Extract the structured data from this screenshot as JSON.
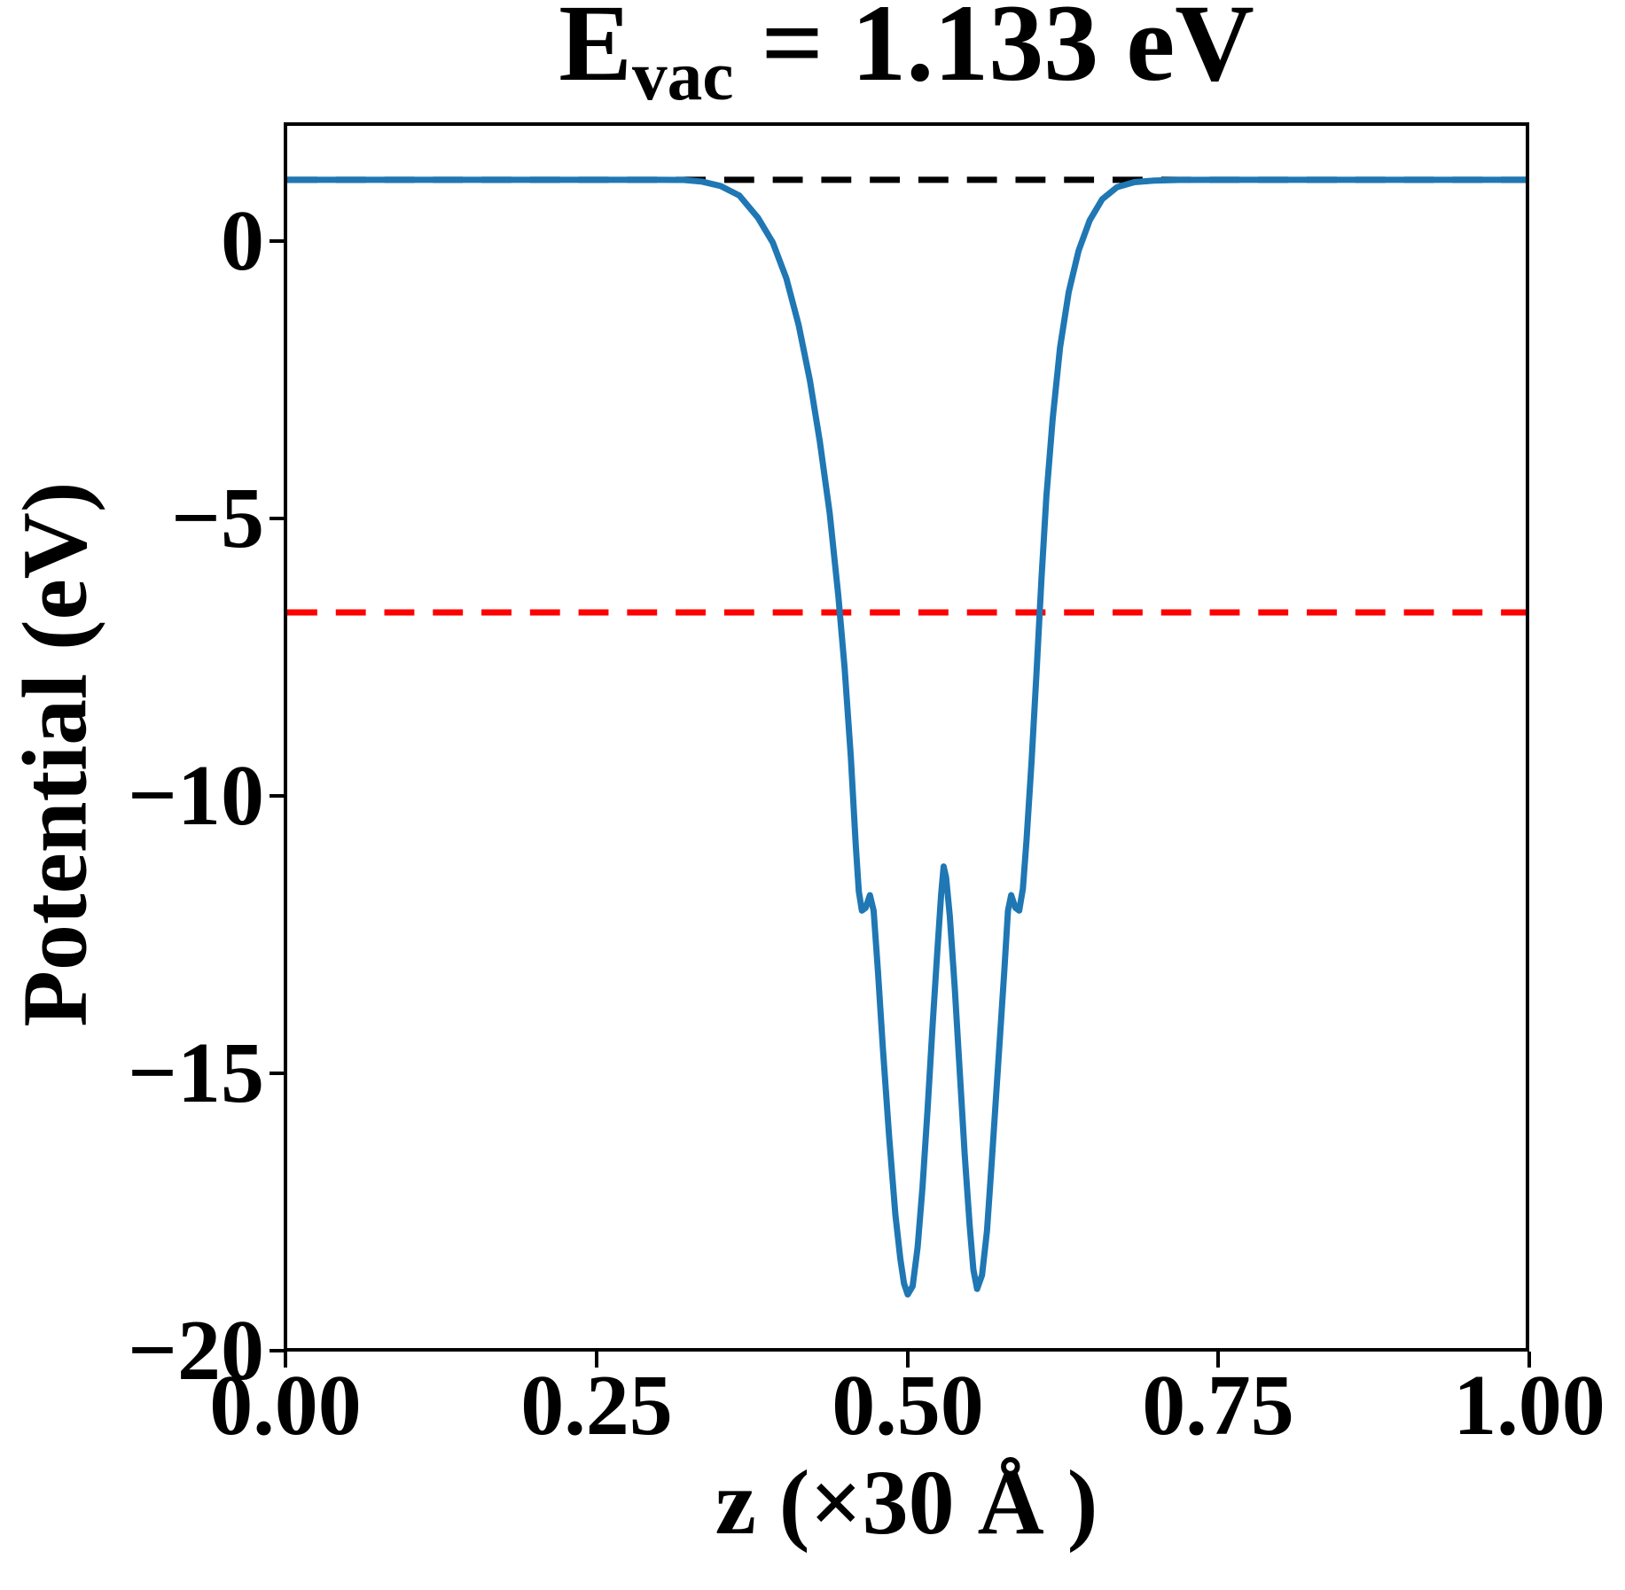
{
  "figure": {
    "title": {
      "prefix": "E",
      "subscript": "vac",
      "rest": " = 1.133 eV"
    },
    "xlabel": "z (×30 Å )",
    "ylabel": "Potential (eV)"
  },
  "colors": {
    "curve": "#1f77b4",
    "vacuum_line": "#000000",
    "reference_line": "#ff0000",
    "axes": "#000000",
    "background": "#ffffff"
  },
  "chart_data": {
    "type": "line",
    "title": "E_vac = 1.133 eV",
    "xlabel": "z (×30 Å )",
    "ylabel": "Potential (eV)",
    "xlim": [
      0,
      1
    ],
    "ylim": [
      -20.02,
      2.11
    ],
    "grid": false,
    "legend": "none",
    "xticks": {
      "values": [
        0,
        0.25,
        0.5,
        0.75,
        1
      ],
      "labels": [
        "0.00",
        "0.25",
        "0.50",
        "0.75",
        "1.00"
      ]
    },
    "yticks": {
      "values": [
        0,
        -5,
        -10,
        -15,
        -20
      ],
      "labels": [
        "0",
        "−5",
        "−10",
        "−15",
        "−20"
      ]
    },
    "annotations": {
      "vacuum_energy_eV": 1.133
    },
    "series": [
      {
        "name": "planar-averaged potential",
        "kind": "line",
        "style": "solid",
        "color": "#1f77b4",
        "points": [
          [
            0.0,
            1.133
          ],
          [
            0.05,
            1.133
          ],
          [
            0.1,
            1.133
          ],
          [
            0.15,
            1.133
          ],
          [
            0.2,
            1.133
          ],
          [
            0.25,
            1.133
          ],
          [
            0.3,
            1.133
          ],
          [
            0.32,
            1.13
          ],
          [
            0.335,
            1.1
          ],
          [
            0.35,
            1.02
          ],
          [
            0.365,
            0.85
          ],
          [
            0.38,
            0.45
          ],
          [
            0.392,
            0.0
          ],
          [
            0.403,
            -0.65
          ],
          [
            0.413,
            -1.5
          ],
          [
            0.422,
            -2.5
          ],
          [
            0.43,
            -3.6
          ],
          [
            0.438,
            -4.9
          ],
          [
            0.445,
            -6.4
          ],
          [
            0.45,
            -7.7
          ],
          [
            0.455,
            -9.3
          ],
          [
            0.459,
            -10.9
          ],
          [
            0.4615,
            -11.75
          ],
          [
            0.464,
            -12.1
          ],
          [
            0.467,
            -12.05
          ],
          [
            0.4705,
            -11.82
          ],
          [
            0.4735,
            -12.1
          ],
          [
            0.477,
            -13.2
          ],
          [
            0.481,
            -14.6
          ],
          [
            0.486,
            -16.2
          ],
          [
            0.491,
            -17.6
          ],
          [
            0.495,
            -18.4
          ],
          [
            0.498,
            -18.85
          ],
          [
            0.501,
            -19.05
          ],
          [
            0.505,
            -18.9
          ],
          [
            0.509,
            -18.2
          ],
          [
            0.513,
            -17.1
          ],
          [
            0.517,
            -15.7
          ],
          [
            0.521,
            -14.2
          ],
          [
            0.525,
            -12.8
          ],
          [
            0.528,
            -11.8
          ],
          [
            0.53,
            -11.3
          ],
          [
            0.532,
            -11.5
          ],
          [
            0.535,
            -12.2
          ],
          [
            0.539,
            -13.5
          ],
          [
            0.543,
            -15.0
          ],
          [
            0.547,
            -16.5
          ],
          [
            0.551,
            -17.8
          ],
          [
            0.554,
            -18.6
          ],
          [
            0.557,
            -18.95
          ],
          [
            0.561,
            -18.7
          ],
          [
            0.565,
            -17.9
          ],
          [
            0.569,
            -16.6
          ],
          [
            0.574,
            -14.9
          ],
          [
            0.579,
            -13.2
          ],
          [
            0.582,
            -12.1
          ],
          [
            0.5845,
            -11.82
          ],
          [
            0.588,
            -12.05
          ],
          [
            0.591,
            -12.1
          ],
          [
            0.594,
            -11.7
          ],
          [
            0.597,
            -10.8
          ],
          [
            0.601,
            -9.4
          ],
          [
            0.605,
            -7.8
          ],
          [
            0.609,
            -6.1
          ],
          [
            0.613,
            -4.6
          ],
          [
            0.618,
            -3.2
          ],
          [
            0.624,
            -1.9
          ],
          [
            0.631,
            -0.9
          ],
          [
            0.639,
            -0.15
          ],
          [
            0.648,
            0.4
          ],
          [
            0.658,
            0.78
          ],
          [
            0.67,
            1.0
          ],
          [
            0.684,
            1.09
          ],
          [
            0.7,
            1.12
          ],
          [
            0.72,
            1.13
          ],
          [
            0.75,
            1.133
          ],
          [
            0.8,
            1.133
          ],
          [
            0.85,
            1.133
          ],
          [
            0.9,
            1.133
          ],
          [
            0.95,
            1.133
          ],
          [
            1.0,
            1.133
          ]
        ]
      },
      {
        "name": "vacuum level",
        "kind": "hline",
        "style": "dashed",
        "color": "#000000",
        "value": 1.133
      },
      {
        "name": "reference level",
        "kind": "hline",
        "style": "dashed",
        "color": "#ff0000",
        "value": -6.7
      }
    ]
  }
}
